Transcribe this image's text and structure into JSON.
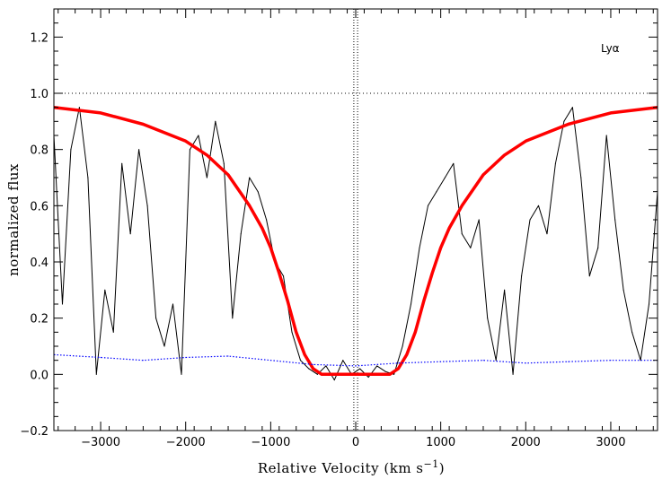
{
  "chart_data": {
    "type": "line",
    "title": "",
    "annotation": "Lyα",
    "xlabel": "Relative Velocity (km s",
    "xlabel_exponent": "−1",
    "xlabel_close": ")",
    "ylabel": "normalized flux",
    "xlim": [
      -3550,
      3550
    ],
    "ylim": [
      -0.2,
      1.3
    ],
    "x_ticks": [
      -3000,
      -2000,
      -1000,
      0,
      1000,
      2000,
      3000
    ],
    "x_tick_labels": [
      "−3000",
      "−2000",
      "−1000",
      "0",
      "1000",
      "2000",
      "3000"
    ],
    "y_ticks": [
      -0.2,
      0.0,
      0.2,
      0.4,
      0.6,
      0.8,
      1.0,
      1.2
    ],
    "y_tick_labels": [
      "−0.2",
      "0.0",
      "0.2",
      "0.4",
      "0.6",
      "0.8",
      "1.0",
      "1.2"
    ],
    "continuum_level": 1.0,
    "zero_velocity_marker": 0,
    "grid": false,
    "series": [
      {
        "role": "observed flux",
        "color": "#000000",
        "style": "solid-thin",
        "x": [
          -3550,
          -3450,
          -3350,
          -3250,
          -3150,
          -3050,
          -2950,
          -2850,
          -2750,
          -2650,
          -2550,
          -2450,
          -2350,
          -2250,
          -2150,
          -2050,
          -1950,
          -1850,
          -1750,
          -1650,
          -1550,
          -1450,
          -1350,
          -1250,
          -1150,
          -1050,
          -950,
          -850,
          -750,
          -650,
          -550,
          -450,
          -350,
          -250,
          -150,
          -50,
          50,
          150,
          250,
          350,
          450,
          550,
          650,
          750,
          850,
          950,
          1050,
          1150,
          1250,
          1350,
          1450,
          1550,
          1650,
          1750,
          1850,
          1950,
          2050,
          2150,
          2250,
          2350,
          2450,
          2550,
          2650,
          2750,
          2850,
          2950,
          3050,
          3150,
          3250,
          3350,
          3450,
          3550
        ],
        "y": [
          0.85,
          0.25,
          0.8,
          0.95,
          0.7,
          0.0,
          0.3,
          0.15,
          0.75,
          0.5,
          0.8,
          0.6,
          0.2,
          0.1,
          0.25,
          0.0,
          0.8,
          0.85,
          0.7,
          0.9,
          0.75,
          0.2,
          0.5,
          0.7,
          0.65,
          0.55,
          0.4,
          0.35,
          0.15,
          0.05,
          0.02,
          0.0,
          0.03,
          -0.02,
          0.05,
          0.0,
          0.02,
          -0.01,
          0.03,
          0.01,
          0.0,
          0.1,
          0.25,
          0.45,
          0.6,
          0.65,
          0.7,
          0.75,
          0.5,
          0.45,
          0.55,
          0.2,
          0.05,
          0.3,
          0.0,
          0.35,
          0.55,
          0.6,
          0.5,
          0.75,
          0.9,
          0.95,
          0.7,
          0.35,
          0.45,
          0.85,
          0.55,
          0.3,
          0.15,
          0.05,
          0.25,
          0.65
        ]
      },
      {
        "role": "model profile",
        "color": "#ff0000",
        "style": "solid-thick",
        "x": [
          -3550,
          -3000,
          -2500,
          -2000,
          -1750,
          -1500,
          -1250,
          -1100,
          -1000,
          -900,
          -800,
          -700,
          -600,
          -500,
          -400,
          -300,
          300,
          400,
          500,
          600,
          700,
          800,
          900,
          1000,
          1100,
          1250,
          1500,
          1750,
          2000,
          2500,
          3000,
          3550
        ],
        "y": [
          0.95,
          0.93,
          0.89,
          0.83,
          0.78,
          0.71,
          0.6,
          0.52,
          0.45,
          0.36,
          0.26,
          0.15,
          0.07,
          0.02,
          0.0,
          0.0,
          0.0,
          0.0,
          0.02,
          0.07,
          0.15,
          0.26,
          0.36,
          0.45,
          0.52,
          0.6,
          0.71,
          0.78,
          0.83,
          0.89,
          0.93,
          0.95
        ]
      },
      {
        "role": "error spectrum",
        "color": "#0000ff",
        "style": "dotted",
        "x": [
          -3550,
          -3000,
          -2500,
          -2000,
          -1500,
          -1000,
          -500,
          0,
          500,
          1000,
          1500,
          2000,
          2500,
          3000,
          3550
        ],
        "y": [
          0.07,
          0.06,
          0.05,
          0.06,
          0.065,
          0.05,
          0.035,
          0.03,
          0.04,
          0.045,
          0.05,
          0.04,
          0.045,
          0.05,
          0.05
        ]
      }
    ]
  }
}
